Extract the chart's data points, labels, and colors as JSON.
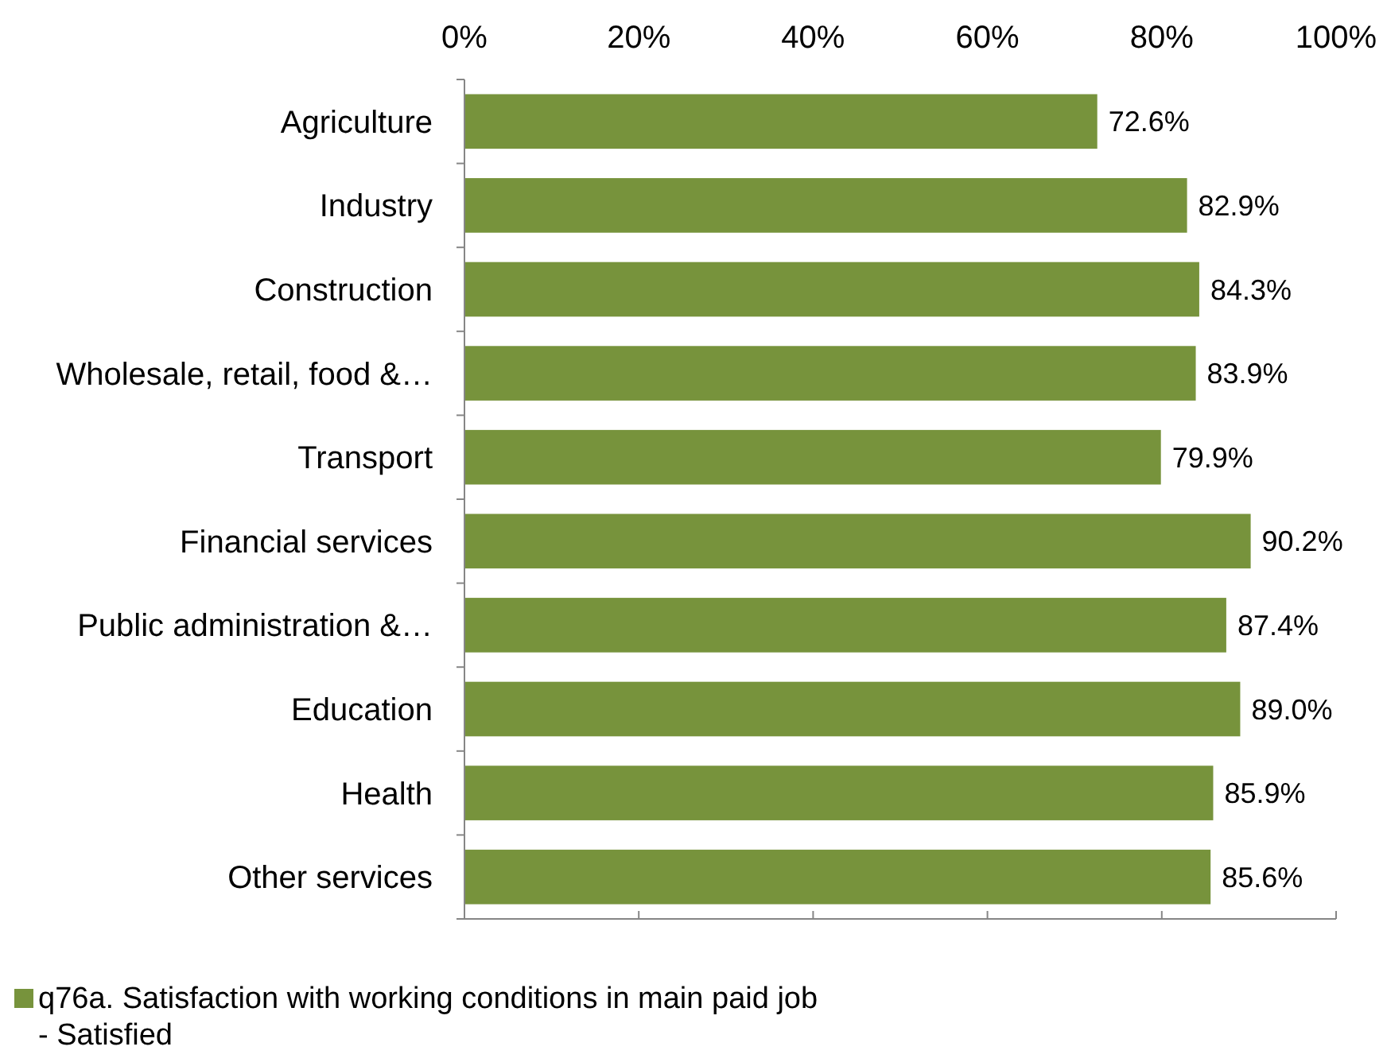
{
  "chart_data": {
    "type": "bar",
    "orientation": "horizontal",
    "categories": [
      "Agriculture",
      "Industry",
      "Construction",
      "Wholesale, retail, food &…",
      "Transport",
      "Financial services",
      "Public administration &…",
      "Education",
      "Health",
      "Other services"
    ],
    "series": [
      {
        "name": "q76a. Satisfaction with working conditions in main paid job - Satisfied",
        "color": "#77933c",
        "values": [
          72.6,
          82.9,
          84.3,
          83.9,
          79.9,
          90.2,
          87.4,
          89.0,
          85.9,
          85.6
        ],
        "value_labels": [
          "72.6%",
          "82.9%",
          "84.3%",
          "83.9%",
          "79.9%",
          "90.2%",
          "87.4%",
          "89.0%",
          "85.9%",
          "85.6%"
        ]
      }
    ],
    "xlim": [
      0,
      100
    ],
    "xticks": [
      {
        "value": 0,
        "label": "0%"
      },
      {
        "value": 20,
        "label": "20%"
      },
      {
        "value": 40,
        "label": "40%"
      },
      {
        "value": 60,
        "label": "60%"
      },
      {
        "value": 80,
        "label": "80%"
      },
      {
        "value": 100,
        "label": "100%"
      }
    ],
    "grid": false,
    "legend": "bottom left"
  }
}
